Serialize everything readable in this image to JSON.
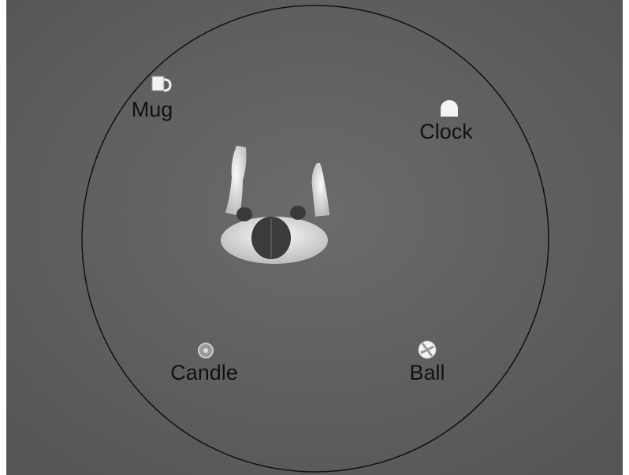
{
  "objects": [
    {
      "label": "Mug"
    },
    {
      "label": "Clock"
    },
    {
      "label": "Candle"
    },
    {
      "label": "Ball"
    }
  ]
}
